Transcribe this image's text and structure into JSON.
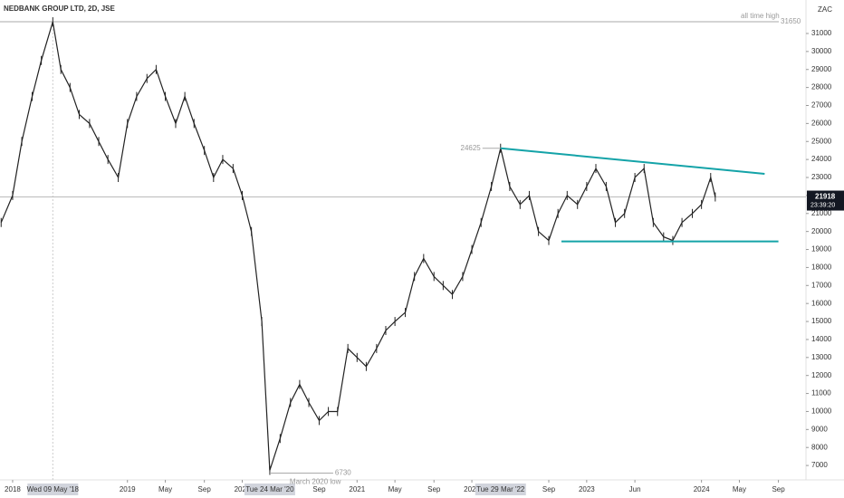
{
  "chart_data": {
    "type": "line",
    "title": "NEDBANK GROUP LTD, 2D, JSE",
    "currency": "ZAC",
    "color": "#222222",
    "xlim": [
      2017.89,
      2024.91
    ],
    "ylim": [
      6200,
      32860
    ],
    "xticks": [
      2018,
      {
        "value": 2018.35,
        "label": "Wed 09 May '18"
      },
      2019,
      {
        "value": 2019.33,
        "label": "May"
      },
      {
        "value": 2019.67,
        "label": "Sep"
      },
      2020,
      {
        "value": 2020.24,
        "label": "Tue 24 Mar '20"
      },
      {
        "value": 2020.67,
        "label": "Sep"
      },
      2021,
      {
        "value": 2021.33,
        "label": "May"
      },
      {
        "value": 2021.67,
        "label": "Sep"
      },
      2022,
      {
        "value": 2022.25,
        "label": "Tue 29 Mar '22"
      },
      {
        "value": 2022.67,
        "label": "Sep"
      },
      2023,
      {
        "value": 2023.42,
        "label": "Jun"
      },
      2024,
      {
        "value": 2024.33,
        "label": "May"
      },
      {
        "value": 2024.67,
        "label": "Sep"
      }
    ],
    "yticks": [
      7000,
      8000,
      9000,
      10000,
      11000,
      12000,
      13000,
      14000,
      15000,
      16000,
      17000,
      18000,
      19000,
      20000,
      21000,
      22000,
      23000,
      24000,
      25000,
      26000,
      27000,
      28000,
      29000,
      30000,
      31000
    ],
    "x": [
      2017.9,
      2018.0,
      2018.08,
      2018.17,
      2018.25,
      2018.35,
      2018.42,
      2018.5,
      2018.58,
      2018.67,
      2018.75,
      2018.83,
      2018.92,
      2019.0,
      2019.08,
      2019.17,
      2019.25,
      2019.33,
      2019.42,
      2019.5,
      2019.58,
      2019.67,
      2019.75,
      2019.83,
      2019.92,
      2020.0,
      2020.08,
      2020.17,
      2020.24,
      2020.33,
      2020.42,
      2020.5,
      2020.58,
      2020.67,
      2020.75,
      2020.83,
      2020.92,
      2021.0,
      2021.08,
      2021.17,
      2021.25,
      2021.33,
      2021.42,
      2021.5,
      2021.58,
      2021.67,
      2021.75,
      2021.83,
      2021.92,
      2022.0,
      2022.08,
      2022.17,
      2022.25,
      2022.33,
      2022.42,
      2022.5,
      2022.58,
      2022.67,
      2022.75,
      2022.83,
      2022.92,
      2023.0,
      2023.08,
      2023.17,
      2023.25,
      2023.33,
      2023.42,
      2023.5,
      2023.58,
      2023.67,
      2023.75,
      2023.83,
      2023.92,
      2024.0,
      2024.08,
      2024.12
    ],
    "values": [
      20500,
      22000,
      25000,
      27500,
      29500,
      31650,
      29000,
      28000,
      26500,
      26000,
      25000,
      24000,
      23000,
      26000,
      27500,
      28500,
      29000,
      27500,
      26000,
      27500,
      26000,
      24500,
      23000,
      24000,
      23500,
      22000,
      20000,
      15000,
      6730,
      8500,
      10500,
      11500,
      10500,
      9500,
      10000,
      10000,
      13500,
      13000,
      12500,
      13500,
      14500,
      15000,
      15500,
      17500,
      18500,
      17500,
      17000,
      16500,
      17500,
      19000,
      20500,
      22500,
      24625,
      22500,
      21500,
      22000,
      20000,
      19500,
      21000,
      22000,
      21500,
      22500,
      23500,
      22500,
      20500,
      21000,
      23000,
      23500,
      20500,
      19700,
      19500,
      20500,
      21000,
      21500,
      23000,
      21918
    ],
    "all_time_high": {
      "label": "all time high",
      "value": 31650
    },
    "high_2022": 24625,
    "low_2020": {
      "label": "March 2020 low",
      "value": 6730
    },
    "last_price": 21918,
    "countdown": "23:39:20",
    "trendline_color": "#14a3a8",
    "trendlines": [
      {
        "x": [
          2022.25,
          2024.55
        ],
        "y": [
          24625,
          23200
        ]
      },
      {
        "x": [
          2022.78,
          2024.67
        ],
        "y": [
          19450,
          19450
        ]
      }
    ]
  }
}
